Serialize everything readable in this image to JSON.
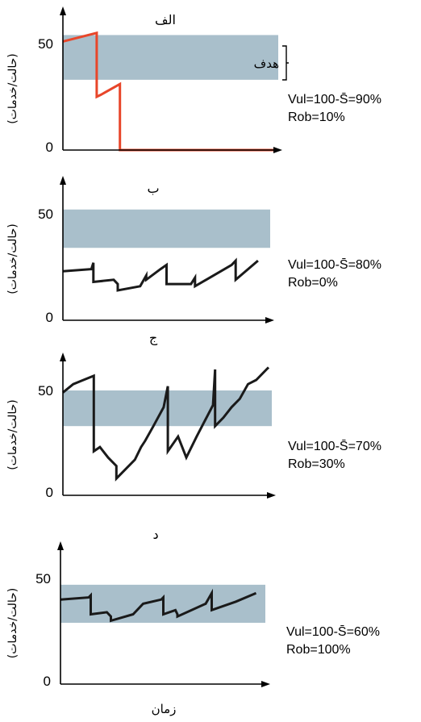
{
  "figure": {
    "ylabel": "(حالت/خدمات)",
    "xlabel": "زمان",
    "target_label": "هدف",
    "colors": {
      "band": "#a9bfcb",
      "red_series": "#e8462a",
      "black_series": "#1a1a1a",
      "axis": "#000000"
    }
  },
  "chart_data": [
    {
      "type": "line",
      "title": "الف",
      "xlim": [
        0,
        100
      ],
      "ylim": [
        0,
        65
      ],
      "yticks": [
        0,
        50
      ],
      "target_band": [
        33,
        54
      ],
      "metrics": [
        "Vul=100-S̄=90%",
        "Rob=10%"
      ],
      "series": [
        {
          "color": "red",
          "x": [
            0,
            16,
            16,
            18,
            27,
            27,
            100
          ],
          "y": [
            51,
            55,
            25,
            26,
            31,
            0,
            0
          ]
        }
      ]
    },
    {
      "type": "line",
      "title": "ب",
      "xlim": [
        0,
        100
      ],
      "ylim": [
        0,
        65
      ],
      "yticks": [
        0,
        50
      ],
      "target_band": [
        34,
        52
      ],
      "metrics": [
        "Vul=100-S̄=80%",
        "Rob=0%"
      ],
      "series": [
        {
          "color": "black",
          "x": [
            0,
            14,
            15,
            15,
            25,
            27,
            27,
            38,
            41,
            41,
            48,
            51,
            51,
            63,
            65,
            65,
            83,
            85,
            85,
            96
          ],
          "y": [
            23,
            24,
            27,
            18,
            19,
            17,
            14,
            16,
            21,
            19,
            24,
            26,
            17,
            17,
            20,
            16,
            26,
            28,
            19,
            28
          ]
        }
      ]
    },
    {
      "type": "line",
      "title": "ج",
      "xlim": [
        0,
        100
      ],
      "ylim": [
        0,
        65
      ],
      "yticks": [
        0,
        50
      ],
      "target_band": [
        33,
        50
      ],
      "metrics": [
        "Vul=100-S̄=70%",
        "Rob=30%"
      ],
      "series": [
        {
          "color": "black",
          "x": [
            0,
            5,
            10,
            15,
            15,
            18,
            22,
            26,
            26,
            30,
            35,
            38,
            40,
            44,
            49,
            51,
            51,
            56,
            60,
            65,
            73,
            74,
            74,
            78,
            82,
            86,
            90,
            94,
            99,
            100
          ],
          "y": [
            49,
            53,
            55,
            57,
            21,
            23,
            18,
            14,
            8,
            12,
            17,
            23,
            26,
            33,
            42,
            52,
            21,
            28,
            18,
            28,
            43,
            60,
            33,
            37,
            42,
            46,
            53,
            55,
            60,
            61
          ]
        }
      ]
    },
    {
      "type": "line",
      "title": "د",
      "xlim": [
        0,
        100
      ],
      "ylim": [
        0,
        65
      ],
      "yticks": [
        0,
        50
      ],
      "target_band": [
        29,
        47
      ],
      "metrics": [
        "Vul=100-S̄=60%",
        "Rob=100%"
      ],
      "series": [
        {
          "color": "black",
          "x": [
            0,
            14,
            15,
            15,
            23,
            25,
            25,
            36,
            41,
            50,
            51,
            51,
            57,
            58,
            58,
            72,
            75,
            75,
            87,
            97
          ],
          "y": [
            40,
            41,
            42,
            33,
            34,
            32,
            30,
            33,
            38,
            40,
            41,
            33,
            35,
            33,
            32,
            38,
            43,
            35,
            39,
            43
          ]
        }
      ]
    }
  ]
}
